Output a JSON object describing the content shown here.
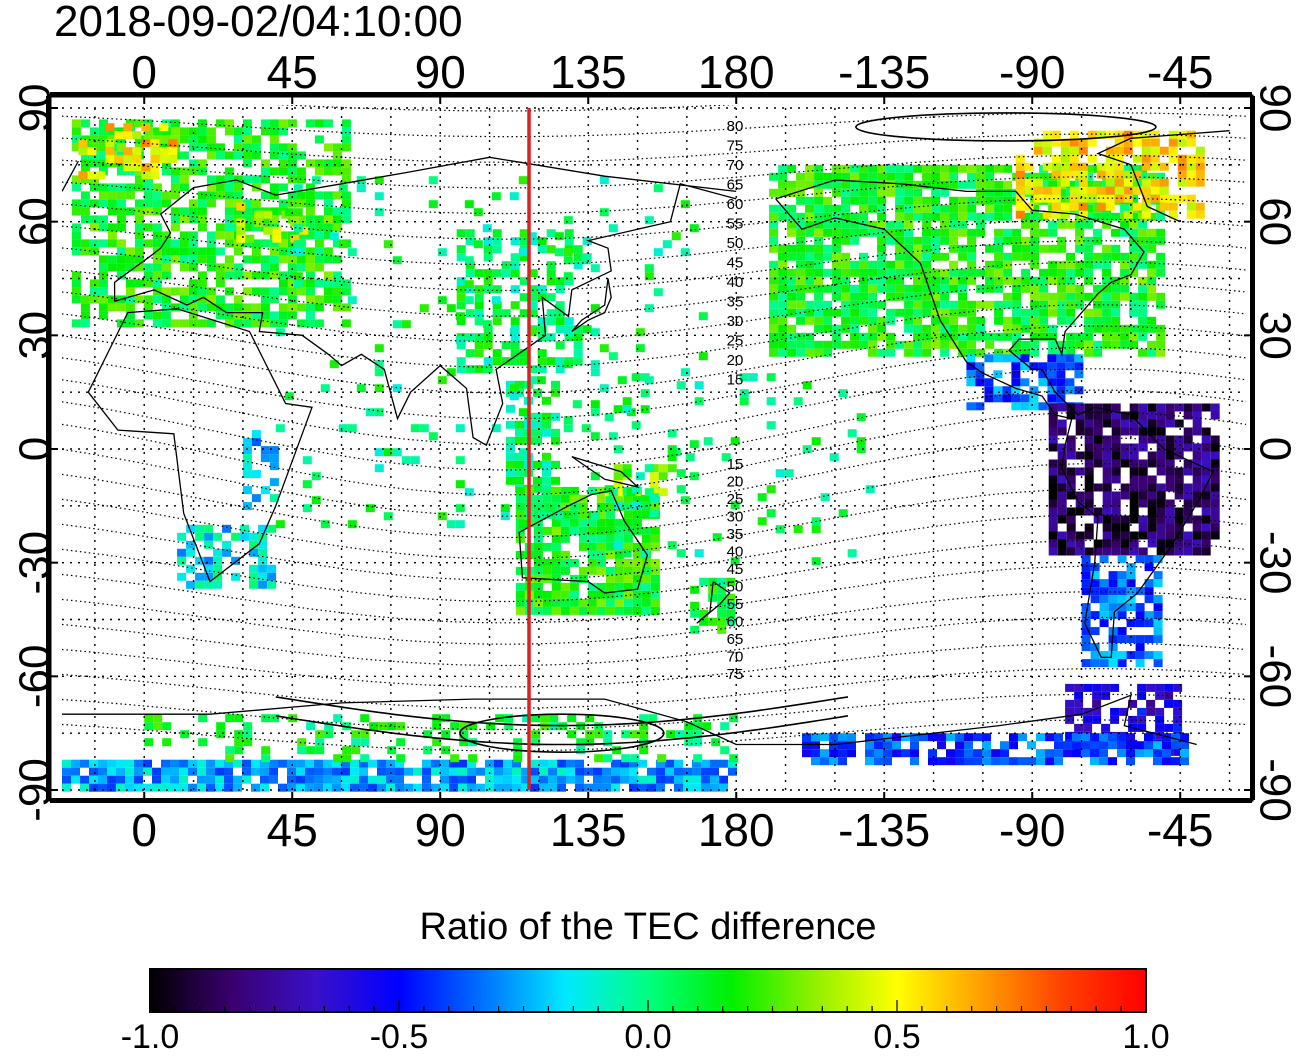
{
  "timestamp": "2018-09-02/04:10:00",
  "map": {
    "projection": "equirectangular",
    "lon_range": [
      -25,
      335
    ],
    "lat_range": [
      -90,
      90
    ],
    "lon_ticks": [
      "0",
      "45",
      "90",
      "135",
      "180",
      "-135",
      "-90",
      "-45"
    ],
    "lat_ticks": [
      "90",
      "60",
      "30",
      "0",
      "-30",
      "-60",
      "-90"
    ],
    "marker_meridian_lon": 117,
    "marker_color": "#e02020",
    "contour_labels_north": [
      "80",
      "75",
      "70",
      "65",
      "60",
      "55",
      "50",
      "45",
      "40",
      "35",
      "30",
      "25",
      "20",
      "15"
    ],
    "contour_labels_south": [
      "15",
      "20",
      "25",
      "30",
      "35",
      "40",
      "45",
      "50",
      "55",
      "60",
      "65",
      "70",
      "75"
    ]
  },
  "colorbar": {
    "title": "Ratio of the TEC difference",
    "tick_labels": [
      "-1.0",
      "-0.5",
      "0.0",
      "0.5",
      "1.0"
    ],
    "range": [
      -1.0,
      1.0
    ],
    "colors": [
      "#000000",
      "#3a0070",
      "#3a10c8",
      "#0000ff",
      "#0070ff",
      "#00e8ff",
      "#00ff80",
      "#00f000",
      "#90f000",
      "#ffff00",
      "#ffa000",
      "#ff4000",
      "#ff0000"
    ]
  },
  "regions": [
    {
      "name": "Europe",
      "value": 0.15
    },
    {
      "name": "Scandinavia",
      "value": 0.45
    },
    {
      "name": "Japan and China",
      "value": 0.05
    },
    {
      "name": "Australia",
      "value": 0.15
    },
    {
      "name": "North America",
      "value": 0.15
    },
    {
      "name": "Greenland",
      "value": 0.7
    },
    {
      "name": "South America north",
      "value": -0.85
    },
    {
      "name": "South America south",
      "value": -0.35
    },
    {
      "name": "Antarctica Pacific sector",
      "value": -0.7
    },
    {
      "name": "Antarctica Indian sector",
      "value": -0.3
    }
  ]
}
